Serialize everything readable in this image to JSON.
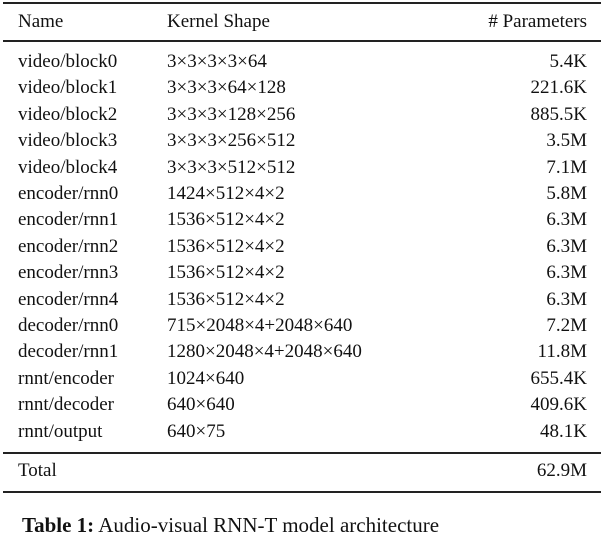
{
  "table": {
    "header": [
      "Name",
      "Kernel Shape",
      "# Parameters"
    ],
    "rows": [
      [
        "video/block0",
        "3×3×3×3×64",
        "5.4K"
      ],
      [
        "video/block1",
        "3×3×3×64×128",
        "221.6K"
      ],
      [
        "video/block2",
        "3×3×3×128×256",
        "885.5K"
      ],
      [
        "video/block3",
        "3×3×3×256×512",
        "3.5M"
      ],
      [
        "video/block4",
        "3×3×3×512×512",
        "7.1M"
      ],
      [
        "encoder/rnn0",
        "1424×512×4×2",
        "5.8M"
      ],
      [
        "encoder/rnn1",
        "1536×512×4×2",
        "6.3M"
      ],
      [
        "encoder/rnn2",
        "1536×512×4×2",
        "6.3M"
      ],
      [
        "encoder/rnn3",
        "1536×512×4×2",
        "6.3M"
      ],
      [
        "encoder/rnn4",
        "1536×512×4×2",
        "6.3M"
      ],
      [
        "decoder/rnn0",
        "715×2048×4+2048×640",
        "7.2M"
      ],
      [
        "decoder/rnn1",
        "1280×2048×4+2048×640",
        "11.8M"
      ],
      [
        "rnnt/encoder",
        "1024×640",
        "655.4K"
      ],
      [
        "rnnt/decoder",
        "640×640",
        "409.6K"
      ],
      [
        "rnnt/output",
        "640×75",
        "48.1K"
      ]
    ],
    "total": [
      "Total",
      "62.9M"
    ]
  },
  "caption": {
    "label": "Table 1:",
    "text": "Audio-visual RNN-T model architecture"
  }
}
